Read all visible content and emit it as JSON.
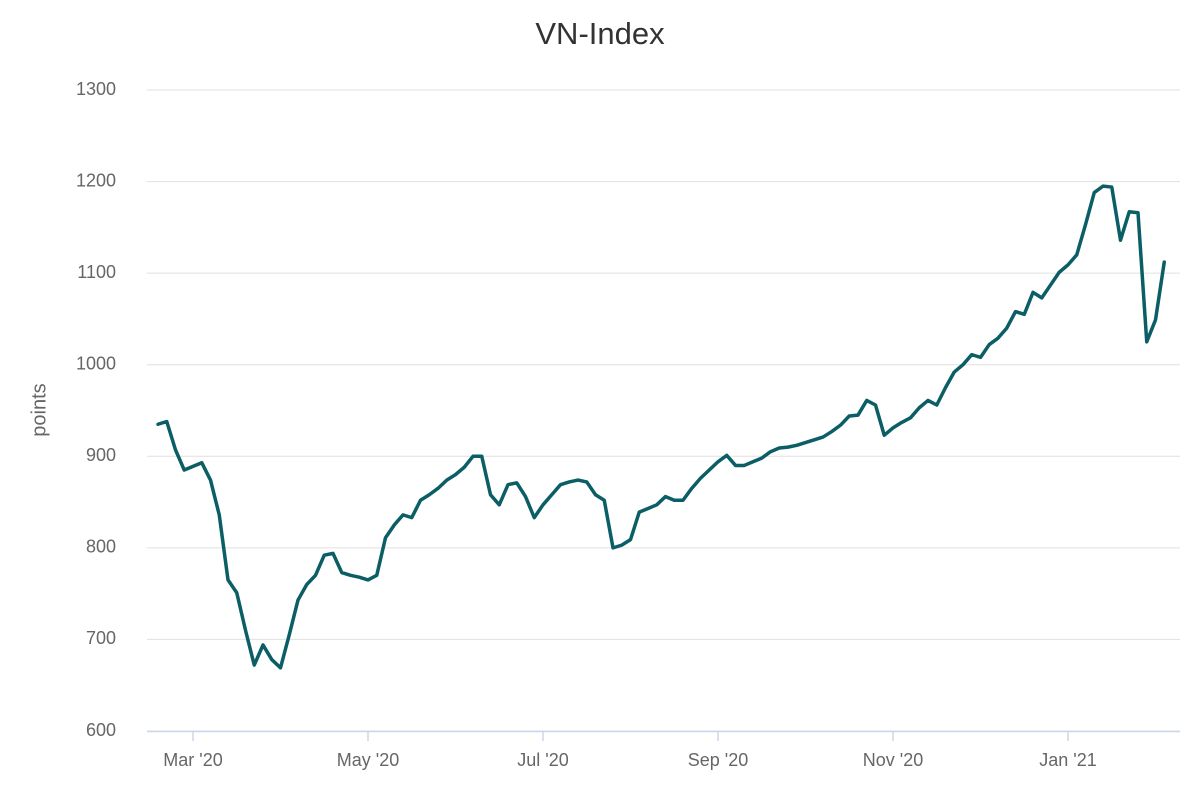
{
  "chart_data": {
    "type": "line",
    "title": "VN-Index",
    "y_axis_label": "points",
    "categories": [
      null,
      null,
      null,
      null,
      "Mar '20",
      null,
      null,
      null,
      null,
      null,
      null,
      null,
      null,
      null,
      null,
      null,
      null,
      null,
      null,
      null,
      null,
      null,
      null,
      null,
      "May '20",
      null,
      null,
      null,
      null,
      null,
      null,
      null,
      null,
      null,
      null,
      null,
      null,
      null,
      null,
      null,
      null,
      null,
      null,
      null,
      "Jul '20",
      null,
      null,
      null,
      null,
      null,
      null,
      null,
      null,
      null,
      null,
      null,
      null,
      null,
      null,
      null,
      null,
      null,
      null,
      null,
      "Sep '20",
      null,
      null,
      null,
      null,
      null,
      null,
      null,
      null,
      null,
      null,
      null,
      null,
      null,
      null,
      null,
      null,
      null,
      null,
      null,
      "Nov '20",
      null,
      null,
      null,
      null,
      null,
      null,
      null,
      null,
      null,
      null,
      null,
      null,
      null,
      null,
      null,
      null,
      null,
      null,
      null,
      "Jan '21",
      null,
      null,
      null,
      null,
      null,
      null,
      null,
      null,
      null,
      null,
      null
    ],
    "series": [
      {
        "name": "VN-Index",
        "color": "#0b5e65",
        "values": [
          935,
          938,
          907,
          885,
          889,
          893,
          874,
          836,
          765,
          751,
          710,
          672,
          694,
          678,
          669,
          705,
          743,
          760,
          770,
          792,
          794,
          773,
          770,
          768,
          765,
          770,
          811,
          825,
          836,
          833,
          852,
          858,
          865,
          874,
          880,
          888,
          900,
          900,
          858,
          847,
          869,
          871,
          856,
          833,
          847,
          858,
          869,
          872,
          874,
          872,
          858,
          852,
          800,
          803,
          809,
          839,
          843,
          847,
          856,
          852,
          852,
          865,
          876,
          885,
          894,
          901,
          890,
          890,
          894,
          898,
          905,
          909,
          910,
          912,
          915,
          918,
          921,
          927,
          934,
          944,
          945,
          961,
          956,
          923,
          931,
          937,
          942,
          953,
          961,
          956,
          975,
          992,
          1000,
          1011,
          1008,
          1022,
          1029,
          1040,
          1058,
          1055,
          1079,
          1073,
          1087,
          1101,
          1109,
          1120,
          1153,
          1188,
          1195,
          1194,
          1136,
          1167,
          1166,
          1025,
          1049,
          1112
        ]
      }
    ],
    "ylim": [
      600,
      1300
    ],
    "yticks": [
      600,
      700,
      800,
      900,
      1000,
      1100,
      1200,
      1300
    ],
    "grid": true,
    "legend": false
  }
}
